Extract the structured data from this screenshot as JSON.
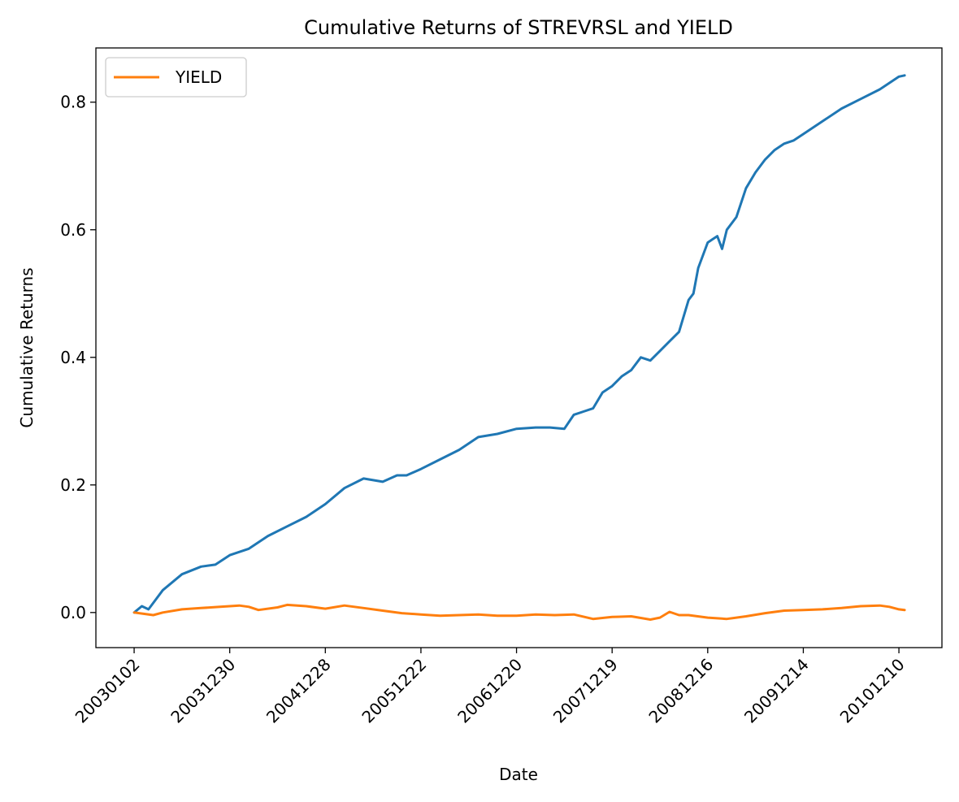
{
  "chart_data": {
    "type": "line",
    "title": "Cumulative Returns of STREVRSL and YIELD",
    "xlabel": "Date",
    "ylabel": "Cumulative Returns",
    "x_tick_labels": [
      "20030102",
      "20031230",
      "20041228",
      "20051222",
      "20061220",
      "20071219",
      "20081216",
      "20091214",
      "20101210"
    ],
    "y_ticks": [
      0.0,
      0.2,
      0.4,
      0.6,
      0.8
    ],
    "y_tick_labels": [
      "0.0",
      "0.2",
      "0.4",
      "0.6",
      "0.8"
    ],
    "xlim_years": [
      -0.4,
      8.45
    ],
    "ylim": [
      -0.055,
      0.885
    ],
    "grid": false,
    "legend": {
      "placement": "top-left",
      "entries": [
        "YIELD"
      ]
    },
    "series": [
      {
        "key": "STREVRSL",
        "color": "#1f77b4",
        "x_years": [
          0.0,
          0.08,
          0.15,
          0.2,
          0.3,
          0.5,
          0.7,
          0.85,
          1.0,
          1.2,
          1.4,
          1.6,
          1.8,
          2.0,
          2.2,
          2.4,
          2.6,
          2.75,
          2.85,
          3.0,
          3.2,
          3.4,
          3.6,
          3.8,
          4.0,
          4.2,
          4.35,
          4.5,
          4.6,
          4.7,
          4.8,
          4.9,
          5.0,
          5.1,
          5.2,
          5.3,
          5.4,
          5.5,
          5.6,
          5.7,
          5.8,
          5.85,
          5.9,
          6.0,
          6.05,
          6.1,
          6.15,
          6.2,
          6.3,
          6.4,
          6.5,
          6.6,
          6.7,
          6.8,
          6.9,
          7.0,
          7.2,
          7.4,
          7.6,
          7.8,
          8.0,
          8.06
        ],
        "values": [
          0.0,
          0.01,
          0.005,
          0.015,
          0.035,
          0.06,
          0.072,
          0.075,
          0.09,
          0.1,
          0.12,
          0.135,
          0.15,
          0.17,
          0.195,
          0.21,
          0.205,
          0.215,
          0.215,
          0.225,
          0.24,
          0.255,
          0.275,
          0.28,
          0.288,
          0.29,
          0.29,
          0.288,
          0.31,
          0.315,
          0.32,
          0.345,
          0.355,
          0.37,
          0.38,
          0.4,
          0.395,
          0.41,
          0.425,
          0.44,
          0.49,
          0.5,
          0.54,
          0.58,
          0.585,
          0.59,
          0.57,
          0.6,
          0.62,
          0.665,
          0.69,
          0.71,
          0.725,
          0.735,
          0.74,
          0.75,
          0.77,
          0.79,
          0.805,
          0.82,
          0.84,
          0.842
        ]
      },
      {
        "key": "YIELD",
        "name": "YIELD",
        "color": "#ff7f0e",
        "x_years": [
          0.0,
          0.1,
          0.2,
          0.3,
          0.5,
          0.7,
          0.9,
          1.0,
          1.1,
          1.2,
          1.3,
          1.5,
          1.6,
          1.8,
          2.0,
          2.2,
          2.4,
          2.6,
          2.8,
          3.0,
          3.2,
          3.4,
          3.6,
          3.8,
          4.0,
          4.2,
          4.4,
          4.6,
          4.8,
          5.0,
          5.2,
          5.4,
          5.5,
          5.6,
          5.7,
          5.8,
          6.0,
          6.2,
          6.4,
          6.6,
          6.8,
          7.0,
          7.2,
          7.4,
          7.6,
          7.8,
          7.9,
          8.0,
          8.06
        ],
        "values": [
          0.0,
          -0.002,
          -0.004,
          0.0,
          0.005,
          0.007,
          0.009,
          0.01,
          0.011,
          0.009,
          0.004,
          0.008,
          0.012,
          0.01,
          0.006,
          0.011,
          0.007,
          0.003,
          -0.001,
          -0.003,
          -0.005,
          -0.004,
          -0.003,
          -0.005,
          -0.005,
          -0.003,
          -0.004,
          -0.003,
          -0.01,
          -0.007,
          -0.006,
          -0.011,
          -0.008,
          0.001,
          -0.004,
          -0.004,
          -0.008,
          -0.01,
          -0.006,
          -0.001,
          0.003,
          0.004,
          0.005,
          0.007,
          0.01,
          0.011,
          0.009,
          0.005,
          0.004
        ]
      }
    ]
  }
}
